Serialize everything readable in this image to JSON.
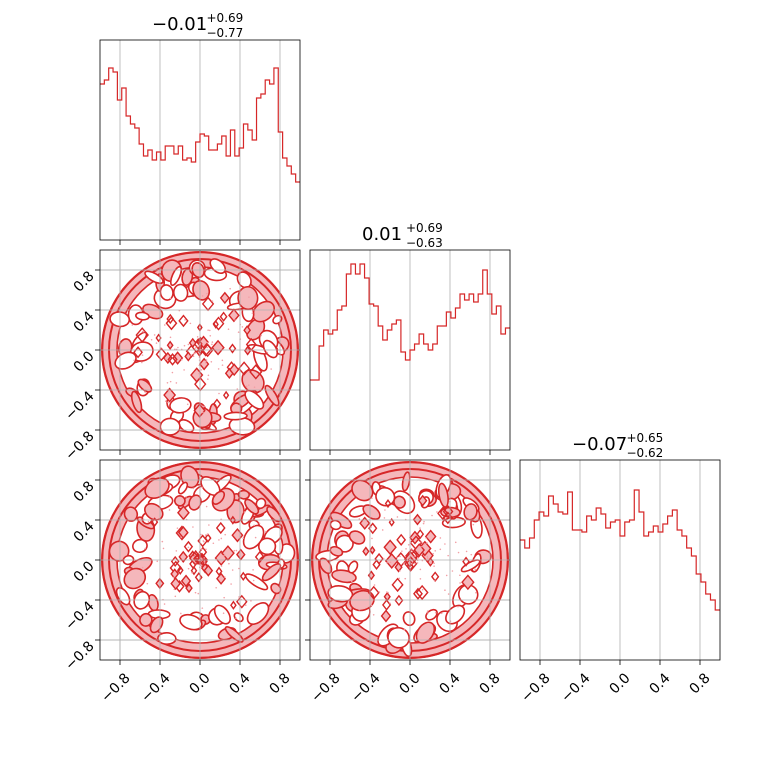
{
  "chart_data": {
    "type": "corner",
    "color": "#d62728",
    "fill_color": "#f5b7bb",
    "grid": true,
    "axis_range": [
      -1.0,
      1.0
    ],
    "ticks": [
      -0.8,
      -0.4,
      0.0,
      0.4,
      0.8
    ],
    "tick_labels": [
      "−0.8",
      "−0.4",
      "0.0",
      "0.4",
      "0.8"
    ],
    "titles": [
      {
        "median": "−0.01",
        "plus": "+0.69",
        "minus": "−0.77"
      },
      {
        "median": "0.01",
        "plus": "+0.69",
        "minus": "−0.63"
      },
      {
        "median": "−0.07",
        "plus": "+0.65",
        "minus": "−0.62"
      }
    ],
    "histograms": [
      [
        0.78,
        0.8,
        0.86,
        0.84,
        0.7,
        0.76,
        0.62,
        0.58,
        0.56,
        0.48,
        0.42,
        0.45,
        0.4,
        0.44,
        0.4,
        0.47,
        0.47,
        0.43,
        0.47,
        0.4,
        0.41,
        0.39,
        0.49,
        0.53,
        0.52,
        0.45,
        0.45,
        0.48,
        0.52,
        0.42,
        0.55,
        0.42,
        0.46,
        0.58,
        0.55,
        0.5,
        0.71,
        0.73,
        0.8,
        0.78,
        0.86,
        0.54,
        0.41,
        0.37,
        0.33,
        0.29
      ],
      [
        0.35,
        0.35,
        0.52,
        0.6,
        0.58,
        0.6,
        0.7,
        0.72,
        0.88,
        0.93,
        0.88,
        0.93,
        0.86,
        0.73,
        0.72,
        0.62,
        0.55,
        0.6,
        0.63,
        0.65,
        0.49,
        0.45,
        0.5,
        0.53,
        0.58,
        0.53,
        0.5,
        0.53,
        0.62,
        0.62,
        0.69,
        0.66,
        0.71,
        0.78,
        0.75,
        0.78,
        0.74,
        0.78,
        0.9,
        0.78,
        0.68,
        0.72,
        0.58,
        0.61
      ],
      [
        0.6,
        0.56,
        0.61,
        0.7,
        0.74,
        0.72,
        0.82,
        0.78,
        0.74,
        0.73,
        0.84,
        0.65,
        0.65,
        0.64,
        0.72,
        0.7,
        0.76,
        0.73,
        0.66,
        0.69,
        0.7,
        0.62,
        0.69,
        0.7,
        0.85,
        0.74,
        0.62,
        0.64,
        0.67,
        0.64,
        0.68,
        0.72,
        0.75,
        0.65,
        0.62,
        0.56,
        0.52,
        0.43,
        0.39,
        0.33,
        0.3,
        0.25
      ]
    ]
  }
}
